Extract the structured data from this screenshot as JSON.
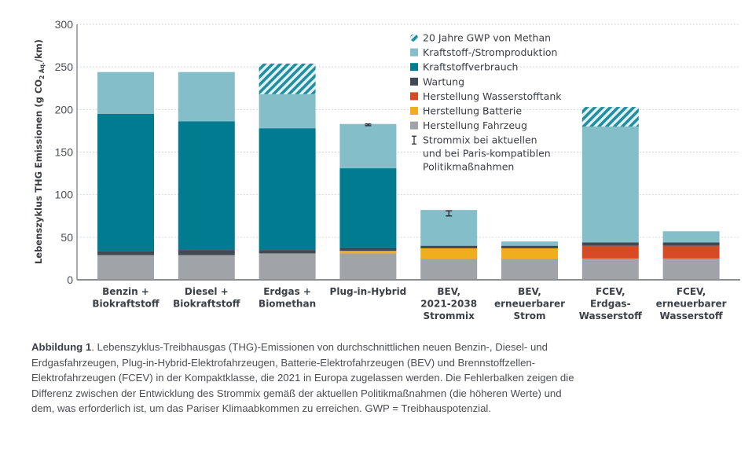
{
  "chart_data": {
    "type": "bar",
    "stacked": true,
    "title": "",
    "ylabel": "Lebenszyklus THG Emissionen (g CO2 Äq./km)",
    "ylabel_parts": {
      "pre": "Lebenszyklus THG Emissionen (g CO",
      "sub": "2 Äq.",
      "post": "/km)"
    },
    "xlabel": "",
    "ylim": [
      0,
      300
    ],
    "yticks": [
      0,
      50,
      100,
      150,
      200,
      250,
      300
    ],
    "grid": "horizontal-dotted",
    "legend_position": "top-right",
    "categories": [
      [
        "Benzin +",
        "Biokraftstoff"
      ],
      [
        "Diesel +",
        "Biokraftstoff"
      ],
      [
        "Erdgas +",
        "Biomethan"
      ],
      [
        "Plug-in-Hybrid"
      ],
      [
        "BEV,",
        "2021-2038",
        "Strommix"
      ],
      [
        "BEV,",
        "erneuerbarer",
        "Strom"
      ],
      [
        "FCEV,",
        "Erdgas-",
        "Wasserstoff"
      ],
      [
        "FCEV,",
        "erneuerbarer",
        "Wasserstoff"
      ]
    ],
    "series": [
      {
        "name": "Herstellung Fahrzeug",
        "color": "#a0a4a8",
        "values": [
          29,
          29,
          31,
          31,
          25,
          25,
          25,
          25
        ]
      },
      {
        "name": "Herstellung Batterie",
        "color": "#f0ad1e",
        "values": [
          0,
          0,
          0,
          3,
          12,
          12,
          0,
          0
        ]
      },
      {
        "name": "Herstellung Wasserstofftank",
        "color": "#d84a26",
        "values": [
          0,
          0,
          0,
          0,
          0,
          0,
          15,
          15
        ]
      },
      {
        "name": "Wartung",
        "color": "#414a52",
        "values": [
          5,
          6,
          4,
          4,
          3,
          3,
          4,
          4
        ]
      },
      {
        "name": "Kraftstoffverbrauch",
        "color": "#007b8f",
        "values": [
          161,
          151,
          143,
          93,
          0,
          0,
          0,
          0
        ]
      },
      {
        "name": "Kraftstoff-/Stromproduktion",
        "color": "#83bec9",
        "values": [
          49,
          58,
          40,
          52,
          42,
          5,
          136,
          13
        ]
      },
      {
        "name": "20 Jahre GWP von Methan",
        "color": "#1f8ea0",
        "pattern": "hatch",
        "values": [
          0,
          0,
          36,
          0,
          0,
          0,
          23,
          0
        ]
      }
    ],
    "error_bars": [
      null,
      null,
      null,
      {
        "low": 181,
        "high": 183
      },
      {
        "low": 75,
        "high": 81
      },
      null,
      null,
      null
    ],
    "legend": [
      {
        "label": "20 Jahre GWP von Methan",
        "type": "hatch",
        "color": "#1f8ea0"
      },
      {
        "label": "Kraftstoff-/Stromproduktion",
        "type": "box",
        "color": "#83bec9"
      },
      {
        "label": "Kraftstoffverbrauch",
        "type": "box",
        "color": "#007b8f"
      },
      {
        "label": "Wartung",
        "type": "box",
        "color": "#414a52"
      },
      {
        "label": "Herstellung Wasserstofftank",
        "type": "box",
        "color": "#d84a26"
      },
      {
        "label": "Herstellung Batterie",
        "type": "box",
        "color": "#f0ad1e"
      },
      {
        "label": "Herstellung Fahrzeug",
        "type": "box",
        "color": "#a0a4a8"
      },
      {
        "label": "Strommix bei aktuellen",
        "type": "errorbar",
        "color": "#222222",
        "extra_lines": [
          "und bei Paris-kompatiblen",
          "Politikmaßnahmen"
        ]
      }
    ]
  },
  "caption": {
    "label": "Abbildung 1",
    "text": ". Lebenszyklus-Treibhausgas (THG)-Emissionen von durchschnittlichen neuen Benzin-, Diesel- und Erdgasfahrzeugen, Plug-in-Hybrid-Elektrofahrzeugen, Batterie-Elektrofahrzeugen (BEV) und Brennstoffzellen-Elektrofahrzeugen (FCEV) in der Kompaktklasse, die 2021 in Europa zugelassen werden. Die Fehlerbalken zeigen die Differenz zwischen der Entwicklung des Strommix gemäß der aktuellen Politikmaßnahmen (die höheren Werte) und dem, was erforderlich ist, um das Pariser Klimaabkommen zu erreichen. GWP = Treibhauspotenzial."
  }
}
